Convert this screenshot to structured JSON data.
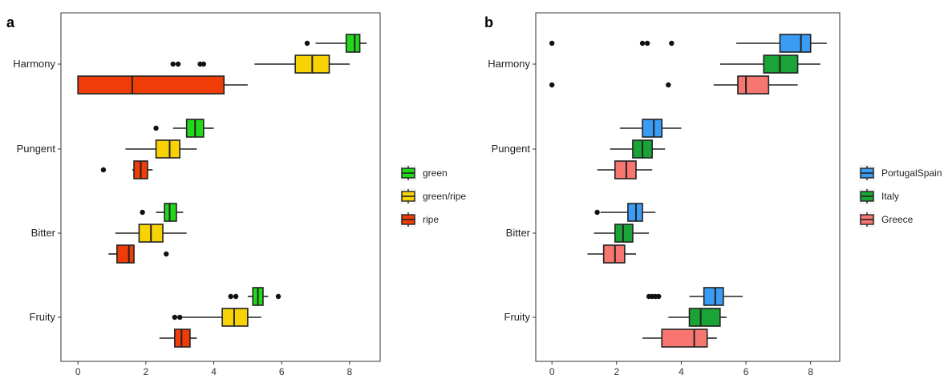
{
  "chart_data": [
    {
      "type": "boxplot",
      "panel": "a",
      "orientation": "horizontal",
      "categories": [
        "Harmony",
        "Pungent",
        "Bitter",
        "Fruity"
      ],
      "xlim": [
        -0.5,
        8.9
      ],
      "xticks": [
        0,
        2,
        4,
        6,
        8
      ],
      "grid": false,
      "legend_position": "right",
      "series": [
        {
          "name": "ripe",
          "color": "#F03C07",
          "boxes": [
            {
              "category": "Harmony",
              "whisker_low": 0,
              "q1": 0,
              "median": 1.6,
              "q3": 4.3,
              "whisker_high": 5.0,
              "outliers": []
            },
            {
              "category": "Pungent",
              "whisker_low": 1.6,
              "q1": 1.65,
              "median": 1.85,
              "q3": 2.05,
              "whisker_high": 2.2,
              "outliers": [
                0.75
              ]
            },
            {
              "category": "Bitter",
              "whisker_low": 0.9,
              "q1": 1.15,
              "median": 1.5,
              "q3": 1.65,
              "whisker_high": 1.65,
              "outliers": [
                2.6
              ]
            },
            {
              "category": "Fruity",
              "whisker_low": 2.4,
              "q1": 2.85,
              "median": 3.05,
              "q3": 3.3,
              "whisker_high": 3.5,
              "outliers": []
            }
          ]
        },
        {
          "name": "green/ripe",
          "color": "#F7D305",
          "boxes": [
            {
              "category": "Harmony",
              "whisker_low": 5.2,
              "q1": 6.4,
              "median": 6.9,
              "q3": 7.4,
              "whisker_high": 8.0,
              "outliers": [
                2.8,
                2.95,
                3.6,
                3.7
              ]
            },
            {
              "category": "Pungent",
              "whisker_low": 1.4,
              "q1": 2.3,
              "median": 2.7,
              "q3": 3.0,
              "whisker_high": 3.5,
              "outliers": []
            },
            {
              "category": "Bitter",
              "whisker_low": 1.1,
              "q1": 1.8,
              "median": 2.15,
              "q3": 2.5,
              "whisker_high": 3.2,
              "outliers": []
            },
            {
              "category": "Fruity",
              "whisker_low": 3.0,
              "q1": 4.25,
              "median": 4.6,
              "q3": 5.0,
              "whisker_high": 5.4,
              "outliers": [
                2.85,
                3.0
              ]
            }
          ]
        },
        {
          "name": "green",
          "color": "#22D81B",
          "boxes": [
            {
              "category": "Harmony",
              "whisker_low": 7.0,
              "q1": 7.9,
              "median": 8.15,
              "q3": 8.3,
              "whisker_high": 8.5,
              "outliers": [
                6.75
              ]
            },
            {
              "category": "Pungent",
              "whisker_low": 2.8,
              "q1": 3.2,
              "median": 3.45,
              "q3": 3.7,
              "whisker_high": 4.0,
              "outliers": [
                2.3
              ]
            },
            {
              "category": "Bitter",
              "whisker_low": 2.3,
              "q1": 2.55,
              "median": 2.7,
              "q3": 2.9,
              "whisker_high": 3.1,
              "outliers": [
                1.9
              ]
            },
            {
              "category": "Fruity",
              "whisker_low": 5.0,
              "q1": 5.15,
              "median": 5.3,
              "q3": 5.45,
              "whisker_high": 5.6,
              "outliers": [
                4.5,
                4.65,
                5.9
              ]
            }
          ]
        }
      ]
    },
    {
      "type": "boxplot",
      "panel": "b",
      "orientation": "horizontal",
      "categories": [
        "Harmony",
        "Pungent",
        "Bitter",
        "Fruity"
      ],
      "xlim": [
        -0.5,
        8.9
      ],
      "xticks": [
        0,
        2,
        4,
        6,
        8
      ],
      "grid": false,
      "legend_position": "right",
      "series": [
        {
          "name": "Greece",
          "color": "#F87670",
          "boxes": [
            {
              "category": "Harmony",
              "whisker_low": 5.0,
              "q1": 5.75,
              "median": 6.0,
              "q3": 6.7,
              "whisker_high": 7.6,
              "outliers": [
                0,
                3.6
              ]
            },
            {
              "category": "Pungent",
              "whisker_low": 1.4,
              "q1": 1.95,
              "median": 2.3,
              "q3": 2.6,
              "whisker_high": 3.1,
              "outliers": []
            },
            {
              "category": "Bitter",
              "whisker_low": 1.1,
              "q1": 1.6,
              "median": 1.95,
              "q3": 2.25,
              "whisker_high": 2.6,
              "outliers": []
            },
            {
              "category": "Fruity",
              "whisker_low": 2.8,
              "q1": 3.4,
              "median": 4.4,
              "q3": 4.8,
              "whisker_high": 5.1,
              "outliers": []
            }
          ]
        },
        {
          "name": "Italy",
          "color": "#1AA336",
          "boxes": [
            {
              "category": "Harmony",
              "whisker_low": 5.2,
              "q1": 6.55,
              "median": 7.05,
              "q3": 7.6,
              "whisker_high": 8.3,
              "outliers": []
            },
            {
              "category": "Pungent",
              "whisker_low": 1.8,
              "q1": 2.5,
              "median": 2.8,
              "q3": 3.1,
              "whisker_high": 3.5,
              "outliers": []
            },
            {
              "category": "Bitter",
              "whisker_low": 1.3,
              "q1": 1.95,
              "median": 2.2,
              "q3": 2.5,
              "whisker_high": 3.0,
              "outliers": []
            },
            {
              "category": "Fruity",
              "whisker_low": 3.6,
              "q1": 4.25,
              "median": 4.6,
              "q3": 5.2,
              "whisker_high": 5.4,
              "outliers": []
            }
          ]
        },
        {
          "name": "PortugalSpain",
          "color": "#3A9CF4",
          "boxes": [
            {
              "category": "Harmony",
              "whisker_low": 5.7,
              "q1": 7.05,
              "median": 7.7,
              "q3": 8.0,
              "whisker_high": 8.5,
              "outliers": [
                0,
                2.8,
                2.95,
                3.7
              ]
            },
            {
              "category": "Pungent",
              "whisker_low": 2.1,
              "q1": 2.8,
              "median": 3.15,
              "q3": 3.4,
              "whisker_high": 4.0,
              "outliers": []
            },
            {
              "category": "Bitter",
              "whisker_low": 1.5,
              "q1": 2.35,
              "median": 2.6,
              "q3": 2.8,
              "whisker_high": 3.2,
              "outliers": [
                1.4
              ]
            },
            {
              "category": "Fruity",
              "whisker_low": 4.25,
              "q1": 4.7,
              "median": 5.05,
              "q3": 5.3,
              "whisker_high": 5.9,
              "outliers": [
                3.0,
                3.1,
                3.2,
                3.3
              ]
            }
          ]
        }
      ]
    }
  ]
}
